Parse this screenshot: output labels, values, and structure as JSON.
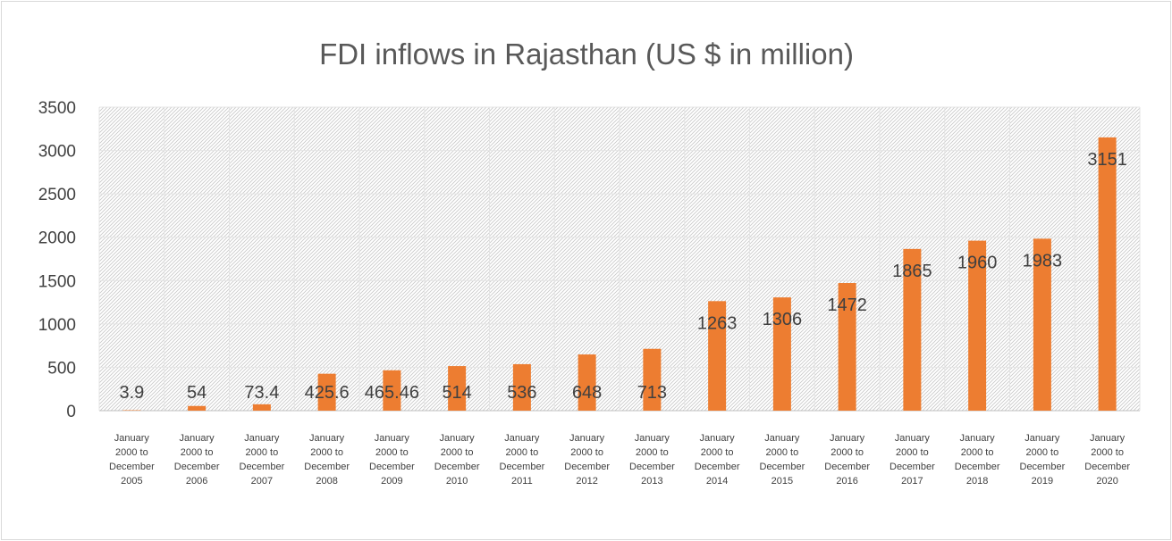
{
  "chart_data": {
    "type": "bar",
    "title": "FDI inflows in Rajasthan (US $ in million)",
    "xlabel": "",
    "ylabel": "",
    "ylim": [
      0,
      3500
    ],
    "yticks": [
      "0",
      "500",
      "1000",
      "1500",
      "2000",
      "2500",
      "3000",
      "3500"
    ],
    "grid": true,
    "legend": "none",
    "bar_color": "#ed7d31",
    "categories": [
      [
        "January",
        "2000 to",
        "December",
        "2005"
      ],
      [
        "January",
        "2000 to",
        "December",
        "2006"
      ],
      [
        "January",
        "2000 to",
        "December",
        "2007"
      ],
      [
        "January",
        "2000 to",
        "December",
        "2008"
      ],
      [
        "January",
        "2000 to",
        "December",
        "2009"
      ],
      [
        "January",
        "2000 to",
        "December",
        "2010"
      ],
      [
        "January",
        "2000 to",
        "December",
        "2011"
      ],
      [
        "January",
        "2000 to",
        "December",
        "2012"
      ],
      [
        "January",
        "2000 to",
        "December",
        "2013"
      ],
      [
        "January",
        "2000 to",
        "December",
        "2014"
      ],
      [
        "January",
        "2000 to",
        "December",
        "2015"
      ],
      [
        "January",
        "2000 to",
        "December",
        "2016"
      ],
      [
        "January",
        "2000 to",
        "December",
        "2017"
      ],
      [
        "January",
        "2000 to",
        "December",
        "2018"
      ],
      [
        "January",
        "2000 to",
        "December",
        "2019"
      ],
      [
        "January",
        "2000 to",
        "December",
        "2020"
      ]
    ],
    "values": [
      3.9,
      54,
      73.4,
      425.6,
      465.46,
      514,
      536,
      648,
      713,
      1263,
      1306,
      1472,
      1865,
      1960,
      1983,
      3151
    ],
    "data_labels": [
      "3.9",
      "54",
      "73.4",
      "425.6",
      "465.46",
      "514",
      "536",
      "648",
      "713",
      "1263",
      "1306",
      "1472",
      "1865",
      "1960",
      "1983",
      "3151"
    ]
  }
}
